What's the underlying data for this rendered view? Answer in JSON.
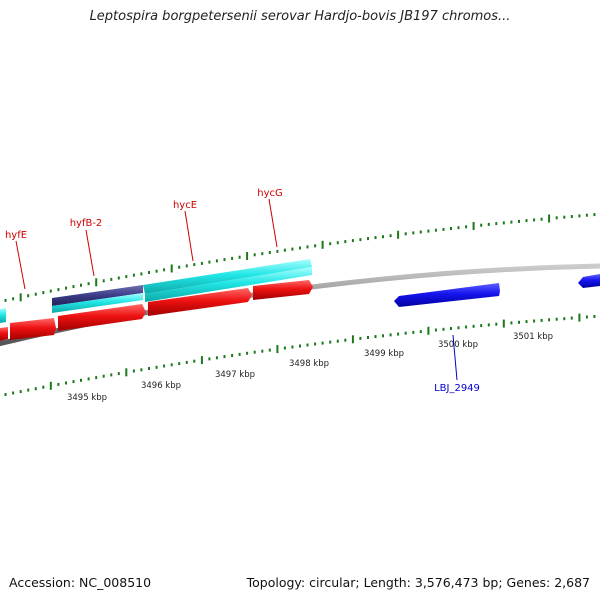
{
  "title": "Leptospira borgpetersenii serovar Hardjo-bovis JB197 chromos...",
  "footer": {
    "accession": "Accession: NC_008510",
    "summary": "Topology: circular; Length: 3,576,473 bp; Genes: 2,687"
  },
  "colors": {
    "forward_gene": "#22e0e0",
    "forward_gene_alt": "#3b3b88",
    "reverse_gene": "#ee1111",
    "other_gene": "#1515ee",
    "backbone": "#888888",
    "tick": "#1a7a1a",
    "gene_label": "#cc0000",
    "other_label": "#0000cc"
  },
  "ruler_labels": [
    {
      "text": "3495 kbp"
    },
    {
      "text": "3496 kbp"
    },
    {
      "text": "3497 kbp"
    },
    {
      "text": "3498 kbp"
    },
    {
      "text": "3499 kbp"
    },
    {
      "text": "3500 kbp"
    },
    {
      "text": "3501 kbp"
    }
  ],
  "gene_labels": [
    {
      "text": "hyfE"
    },
    {
      "text": "hyfB-2"
    },
    {
      "text": "hycE"
    },
    {
      "text": "hycG"
    },
    {
      "text": "LBJ_2949"
    }
  ]
}
